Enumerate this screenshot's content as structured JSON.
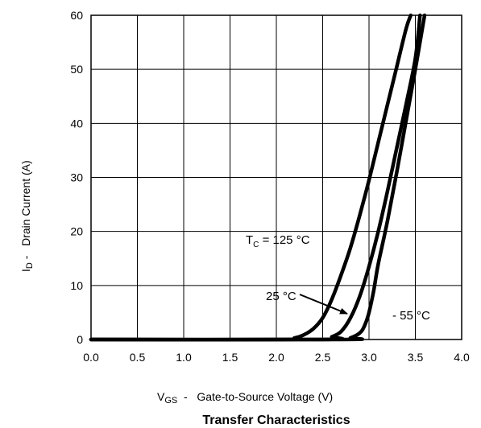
{
  "chart_data": {
    "type": "line",
    "title": "Transfer Characteristics",
    "xlabel": {
      "main": "V",
      "sub": "GS",
      "rest": "  -   Gate-to-Source Voltage (V)"
    },
    "ylabel": {
      "main": "I",
      "sub": "D",
      "rest": " -   Drain Current (A)"
    },
    "xlim": [
      0,
      4
    ],
    "ylim": [
      0,
      60
    ],
    "x_ticks": [
      "0.0",
      "0.5",
      "1.0",
      "1.5",
      "2.0",
      "2.5",
      "3.0",
      "3.5",
      "4.0"
    ],
    "y_ticks": [
      "0",
      "10",
      "20",
      "30",
      "40",
      "50",
      "60"
    ],
    "grid": true,
    "series": [
      {
        "name": "T_C = 125 °C",
        "color": "#000000",
        "x": [
          0.0,
          2.0,
          2.2,
          2.3,
          2.4,
          2.5,
          2.6,
          2.7,
          2.8,
          2.9,
          3.0,
          3.1,
          3.2,
          3.3,
          3.4,
          3.45
        ],
        "y": [
          0,
          0,
          0.3,
          0.9,
          2.0,
          4.0,
          7.5,
          12.0,
          17.0,
          23.0,
          29.5,
          36.5,
          43.5,
          50.5,
          57.5,
          60
        ]
      },
      {
        "name": "25 °C",
        "color": "#000000",
        "x": [
          0.0,
          2.5,
          2.6,
          2.7,
          2.8,
          2.9,
          3.0,
          3.1,
          3.2,
          3.3,
          3.4,
          3.5,
          3.55
        ],
        "y": [
          0,
          0,
          0.5,
          1.5,
          4.0,
          8.0,
          13.5,
          20.0,
          27.5,
          35.5,
          43.5,
          52.0,
          60
        ]
      },
      {
        "name": "- 55 °C",
        "color": "#000000",
        "x": [
          0.0,
          2.7,
          2.8,
          2.9,
          2.95,
          3.0,
          3.05,
          3.1,
          3.2,
          3.3,
          3.4,
          3.5,
          3.6
        ],
        "y": [
          0,
          0,
          0.3,
          1.2,
          2.5,
          5.0,
          9.0,
          14.0,
          22.0,
          31.0,
          40.5,
          50.0,
          60
        ]
      }
    ],
    "annotations": [
      {
        "id": "t125",
        "main": "T",
        "sub": "C",
        "rest": " = 125 °C"
      },
      {
        "id": "t25",
        "text": "25 °C"
      },
      {
        "id": "tm55",
        "text": "- 55 °C"
      }
    ]
  }
}
